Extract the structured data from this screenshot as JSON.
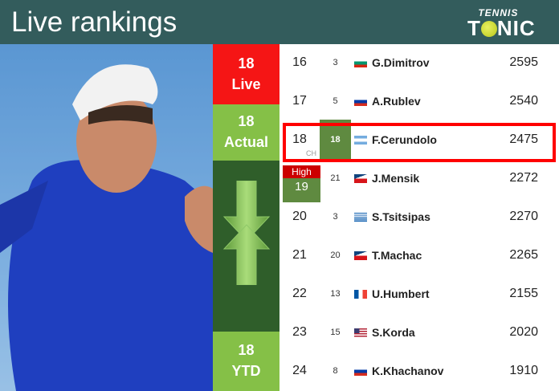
{
  "header": {
    "title": "Live rankings",
    "logo_top": "TENNIS",
    "logo_bottom": "TONIC"
  },
  "side": {
    "live_rank": "18",
    "live_label": "Live",
    "actual_rank": "18",
    "actual_label": "Actual",
    "ytd_rank": "18",
    "ytd_label": "YTD"
  },
  "highlight": {
    "ch_label": "CH",
    "high_label": "High",
    "high_value": "19"
  },
  "rows": [
    {
      "rank": "16",
      "change": "3",
      "flag": "bulgaria",
      "name": "G.Dimitrov",
      "points": "2595"
    },
    {
      "rank": "17",
      "change": "5",
      "flag": "russia",
      "name": "A.Rublev",
      "points": "2540"
    },
    {
      "rank": "18",
      "change": "18",
      "flag": "argentina",
      "name": "F.Cerundolo",
      "points": "2475"
    },
    {
      "rank": "",
      "change": "21",
      "flag": "czechia",
      "name": "J.Mensik",
      "points": "2272"
    },
    {
      "rank": "20",
      "change": "3",
      "flag": "greece",
      "name": "S.Tsitsipas",
      "points": "2270"
    },
    {
      "rank": "21",
      "change": "20",
      "flag": "czechia",
      "name": "T.Machac",
      "points": "2265"
    },
    {
      "rank": "22",
      "change": "13",
      "flag": "france",
      "name": "U.Humbert",
      "points": "2155"
    },
    {
      "rank": "23",
      "change": "15",
      "flag": "usa",
      "name": "S.Korda",
      "points": "2020"
    },
    {
      "rank": "24",
      "change": "8",
      "flag": "russia",
      "name": "K.Khachanov",
      "points": "1910"
    }
  ]
}
